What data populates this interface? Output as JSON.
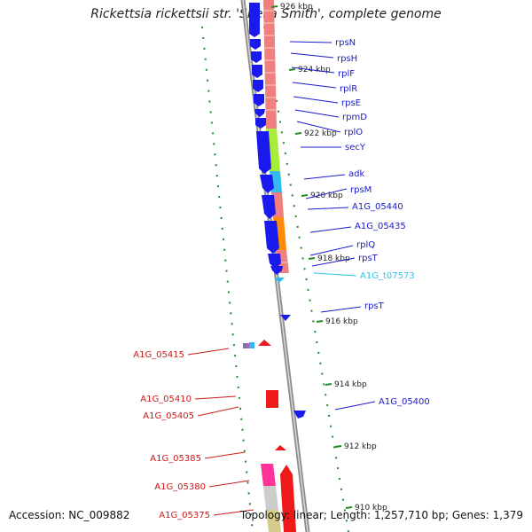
{
  "title": "Rickettsia rickettsii str. 'Sheila Smith', complete genome",
  "accession": "Accession: NC_009882",
  "summary": "Topology: linear; Length: 1,257,710 bp; Genes: 1,379",
  "colors": {
    "leading_strand": "#1a1aee",
    "lagging_strand": "#ee1a1a",
    "label_leading": "#1a1acc",
    "label_lagging": "#cc1a1a",
    "trna": "#33c3e8",
    "tick": "#228b22",
    "ruler": "#8c8c8c"
  },
  "ticks": [
    {
      "label": "926 kbp"
    },
    {
      "label": "924 kbp"
    },
    {
      "label": "922 kbp"
    },
    {
      "label": "920 kbp"
    },
    {
      "label": "918 kbp"
    },
    {
      "label": "916 kbp"
    },
    {
      "label": "914 kbp"
    },
    {
      "label": "912 kbp"
    },
    {
      "label": "910 kbp"
    }
  ],
  "genes_right": [
    {
      "label": "rpsN"
    },
    {
      "label": "rpsH"
    },
    {
      "label": "rplF"
    },
    {
      "label": "rplR"
    },
    {
      "label": "rpsE"
    },
    {
      "label": "rpmD"
    },
    {
      "label": "rplO"
    },
    {
      "label": "secY"
    },
    {
      "label": "adk"
    },
    {
      "label": "rpsM"
    },
    {
      "label": "A1G_05440"
    },
    {
      "label": "A1G_05435"
    },
    {
      "label": "rplQ"
    },
    {
      "label": "rpsT"
    },
    {
      "label": "A1G_t07573"
    },
    {
      "label": "rpsT"
    },
    {
      "label": "A1G_05400"
    }
  ],
  "genes_left": [
    {
      "label": "A1G_05415"
    },
    {
      "label": "A1G_05410"
    },
    {
      "label": "A1G_05405"
    },
    {
      "label": "A1G_05385"
    },
    {
      "label": "A1G_05380"
    },
    {
      "label": "A1G_05375"
    }
  ]
}
